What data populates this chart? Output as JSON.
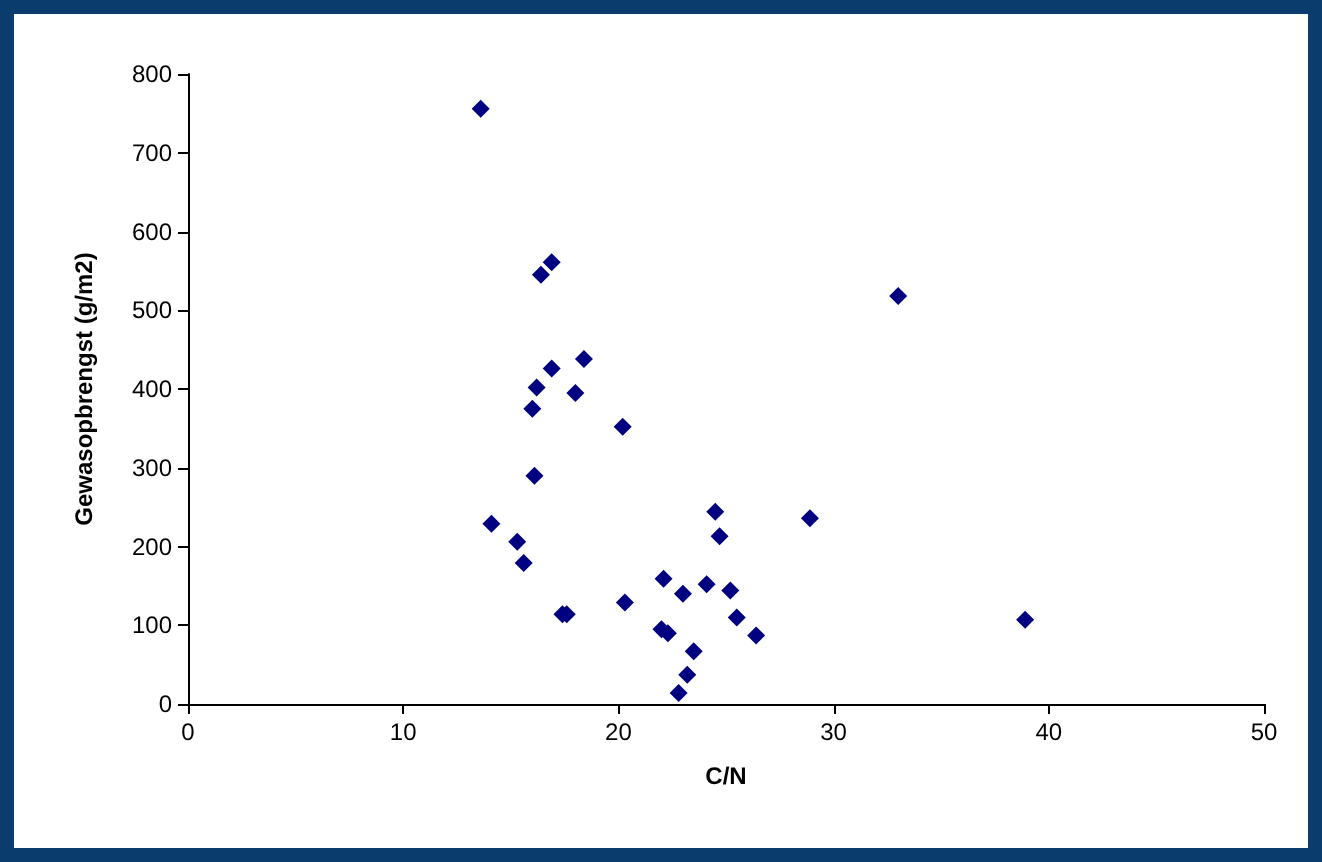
{
  "chart_data": {
    "type": "scatter",
    "xlabel": "C/N",
    "ylabel": "Gewasopbrengst (g/m2)",
    "x": [
      13.6,
      16.9,
      16.4,
      18.4,
      16.9,
      16.2,
      18.0,
      16.0,
      20.2,
      16.1,
      14.1,
      15.3,
      15.6,
      17.4,
      17.6,
      20.3,
      22.1,
      23.0,
      24.1,
      25.2,
      25.5,
      26.4,
      22.0,
      22.3,
      23.5,
      23.2,
      22.8,
      24.5,
      24.7,
      28.9,
      33.0,
      38.9
    ],
    "series": [
      {
        "color": "#000080",
        "values": [
          756,
          561,
          545,
          438,
          426,
          402,
          395,
          375,
          352,
          290,
          229,
          206,
          179,
          114,
          114,
          129,
          159,
          140,
          152,
          144,
          110,
          87,
          95,
          90,
          67,
          37,
          14,
          244,
          213,
          236,
          518,
          107
        ]
      }
    ],
    "xlim": [
      0,
      50
    ],
    "xticks": [
      0,
      10,
      20,
      30,
      40,
      50
    ],
    "ylim": [
      0,
      800
    ],
    "yticks": [
      0,
      100,
      200,
      300,
      400,
      500,
      600,
      700,
      800
    ],
    "grid": false,
    "marker": "diamond"
  }
}
